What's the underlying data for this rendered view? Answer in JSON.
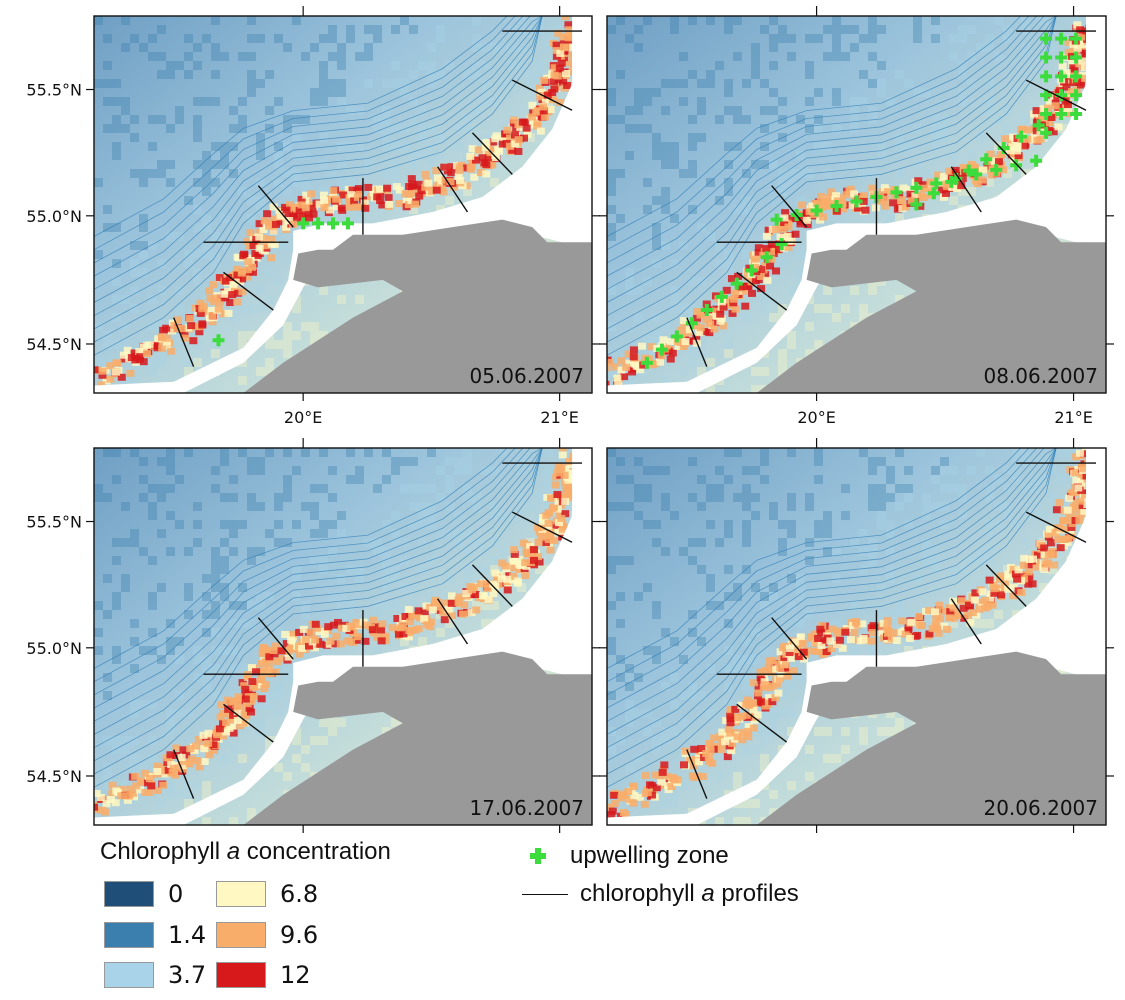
{
  "panels": [
    {
      "date": "05.06.2007",
      "upwelling": "early"
    },
    {
      "date": "08.06.2007",
      "upwelling": "strong"
    },
    {
      "date": "17.06.2007",
      "upwelling": "none"
    },
    {
      "date": "20.06.2007",
      "upwelling": "none"
    }
  ],
  "axes": {
    "lat_labels": [
      "55.5°N",
      "55.0°N",
      "54.5°N"
    ],
    "lon_labels": [
      "20°E",
      "21°E"
    ]
  },
  "legend": {
    "title_pre": "Chlorophyll ",
    "title_italic": "a",
    "title_post": " concentration",
    "classes": [
      {
        "label": "0",
        "color": "#1f4e79"
      },
      {
        "label": "1.4",
        "color": "#3a7fad"
      },
      {
        "label": "3.7",
        "color": "#a9d3e8"
      },
      {
        "label": "6.8",
        "color": "#fff8c2"
      },
      {
        "label": "9.6",
        "color": "#f9ad6a"
      },
      {
        "label": "12",
        "color": "#d7191c"
      }
    ],
    "upwelling_label": "upwelling zone",
    "upwelling_color": "#3ddc3d",
    "profiles_pre": "chlorophyll ",
    "profiles_italic": "a",
    "profiles_post": " profiles"
  },
  "colors": {
    "land": "#999999",
    "coast_white": "#ffffff",
    "isobath": "#2f7fb8"
  }
}
